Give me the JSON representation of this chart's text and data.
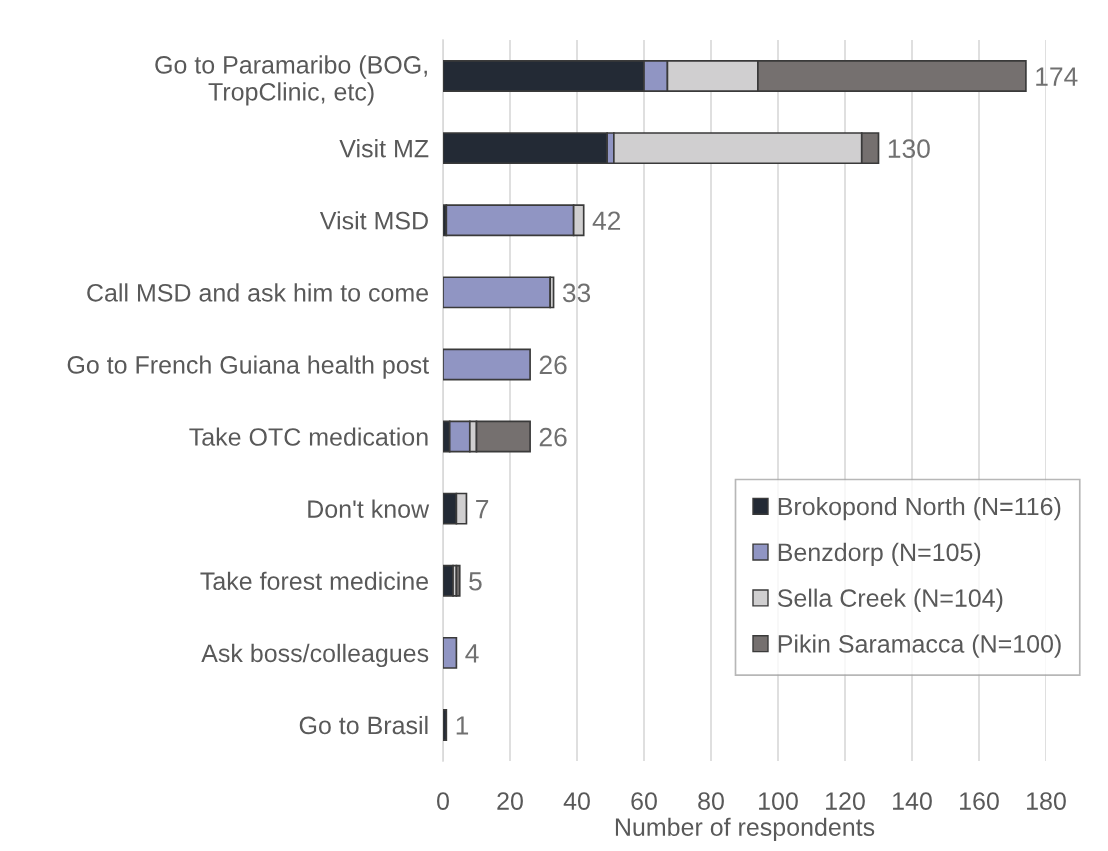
{
  "chart_data": {
    "type": "bar",
    "orientation": "horizontal",
    "stacked": true,
    "xlabel": "Number of respondents",
    "categories": [
      "Go to Paramaribo (BOG,\nTropClinic, etc)",
      "Visit MZ",
      "Visit MSD",
      "Call MSD and ask him to come",
      "Go to French Guiana health post",
      "Take OTC medication",
      "Don't know",
      "Take forest medicine",
      "Ask boss/colleagues",
      "Go to Brasil"
    ],
    "series": [
      {
        "name": "Brokopond North (N=116)",
        "color": "#232a35",
        "values": [
          60,
          49,
          1,
          0,
          0,
          2,
          4,
          3,
          0,
          1
        ]
      },
      {
        "name": "Benzdorp (N=105)",
        "color": "#9095c3",
        "values": [
          7,
          2,
          38,
          32,
          26,
          6,
          0,
          0,
          4,
          0
        ]
      },
      {
        "name": "Sella Creek (N=104)",
        "color": "#d0cfd0",
        "values": [
          27,
          74,
          3,
          1,
          0,
          2,
          3,
          1,
          0,
          0
        ]
      },
      {
        "name": "Pikin Saramacca (N=100)",
        "color": "#75706f",
        "values": [
          80,
          5,
          0,
          0,
          0,
          16,
          0,
          1,
          0,
          0
        ]
      }
    ],
    "totals": [
      "174",
      "130",
      "42",
      "33",
      "26",
      "26",
      "7",
      "5",
      "4",
      "1"
    ],
    "xlim": [
      0,
      180
    ],
    "xticks": [
      0,
      20,
      40,
      60,
      80,
      100,
      120,
      140,
      160,
      180
    ],
    "grid": "x",
    "legend": "bottom right"
  }
}
